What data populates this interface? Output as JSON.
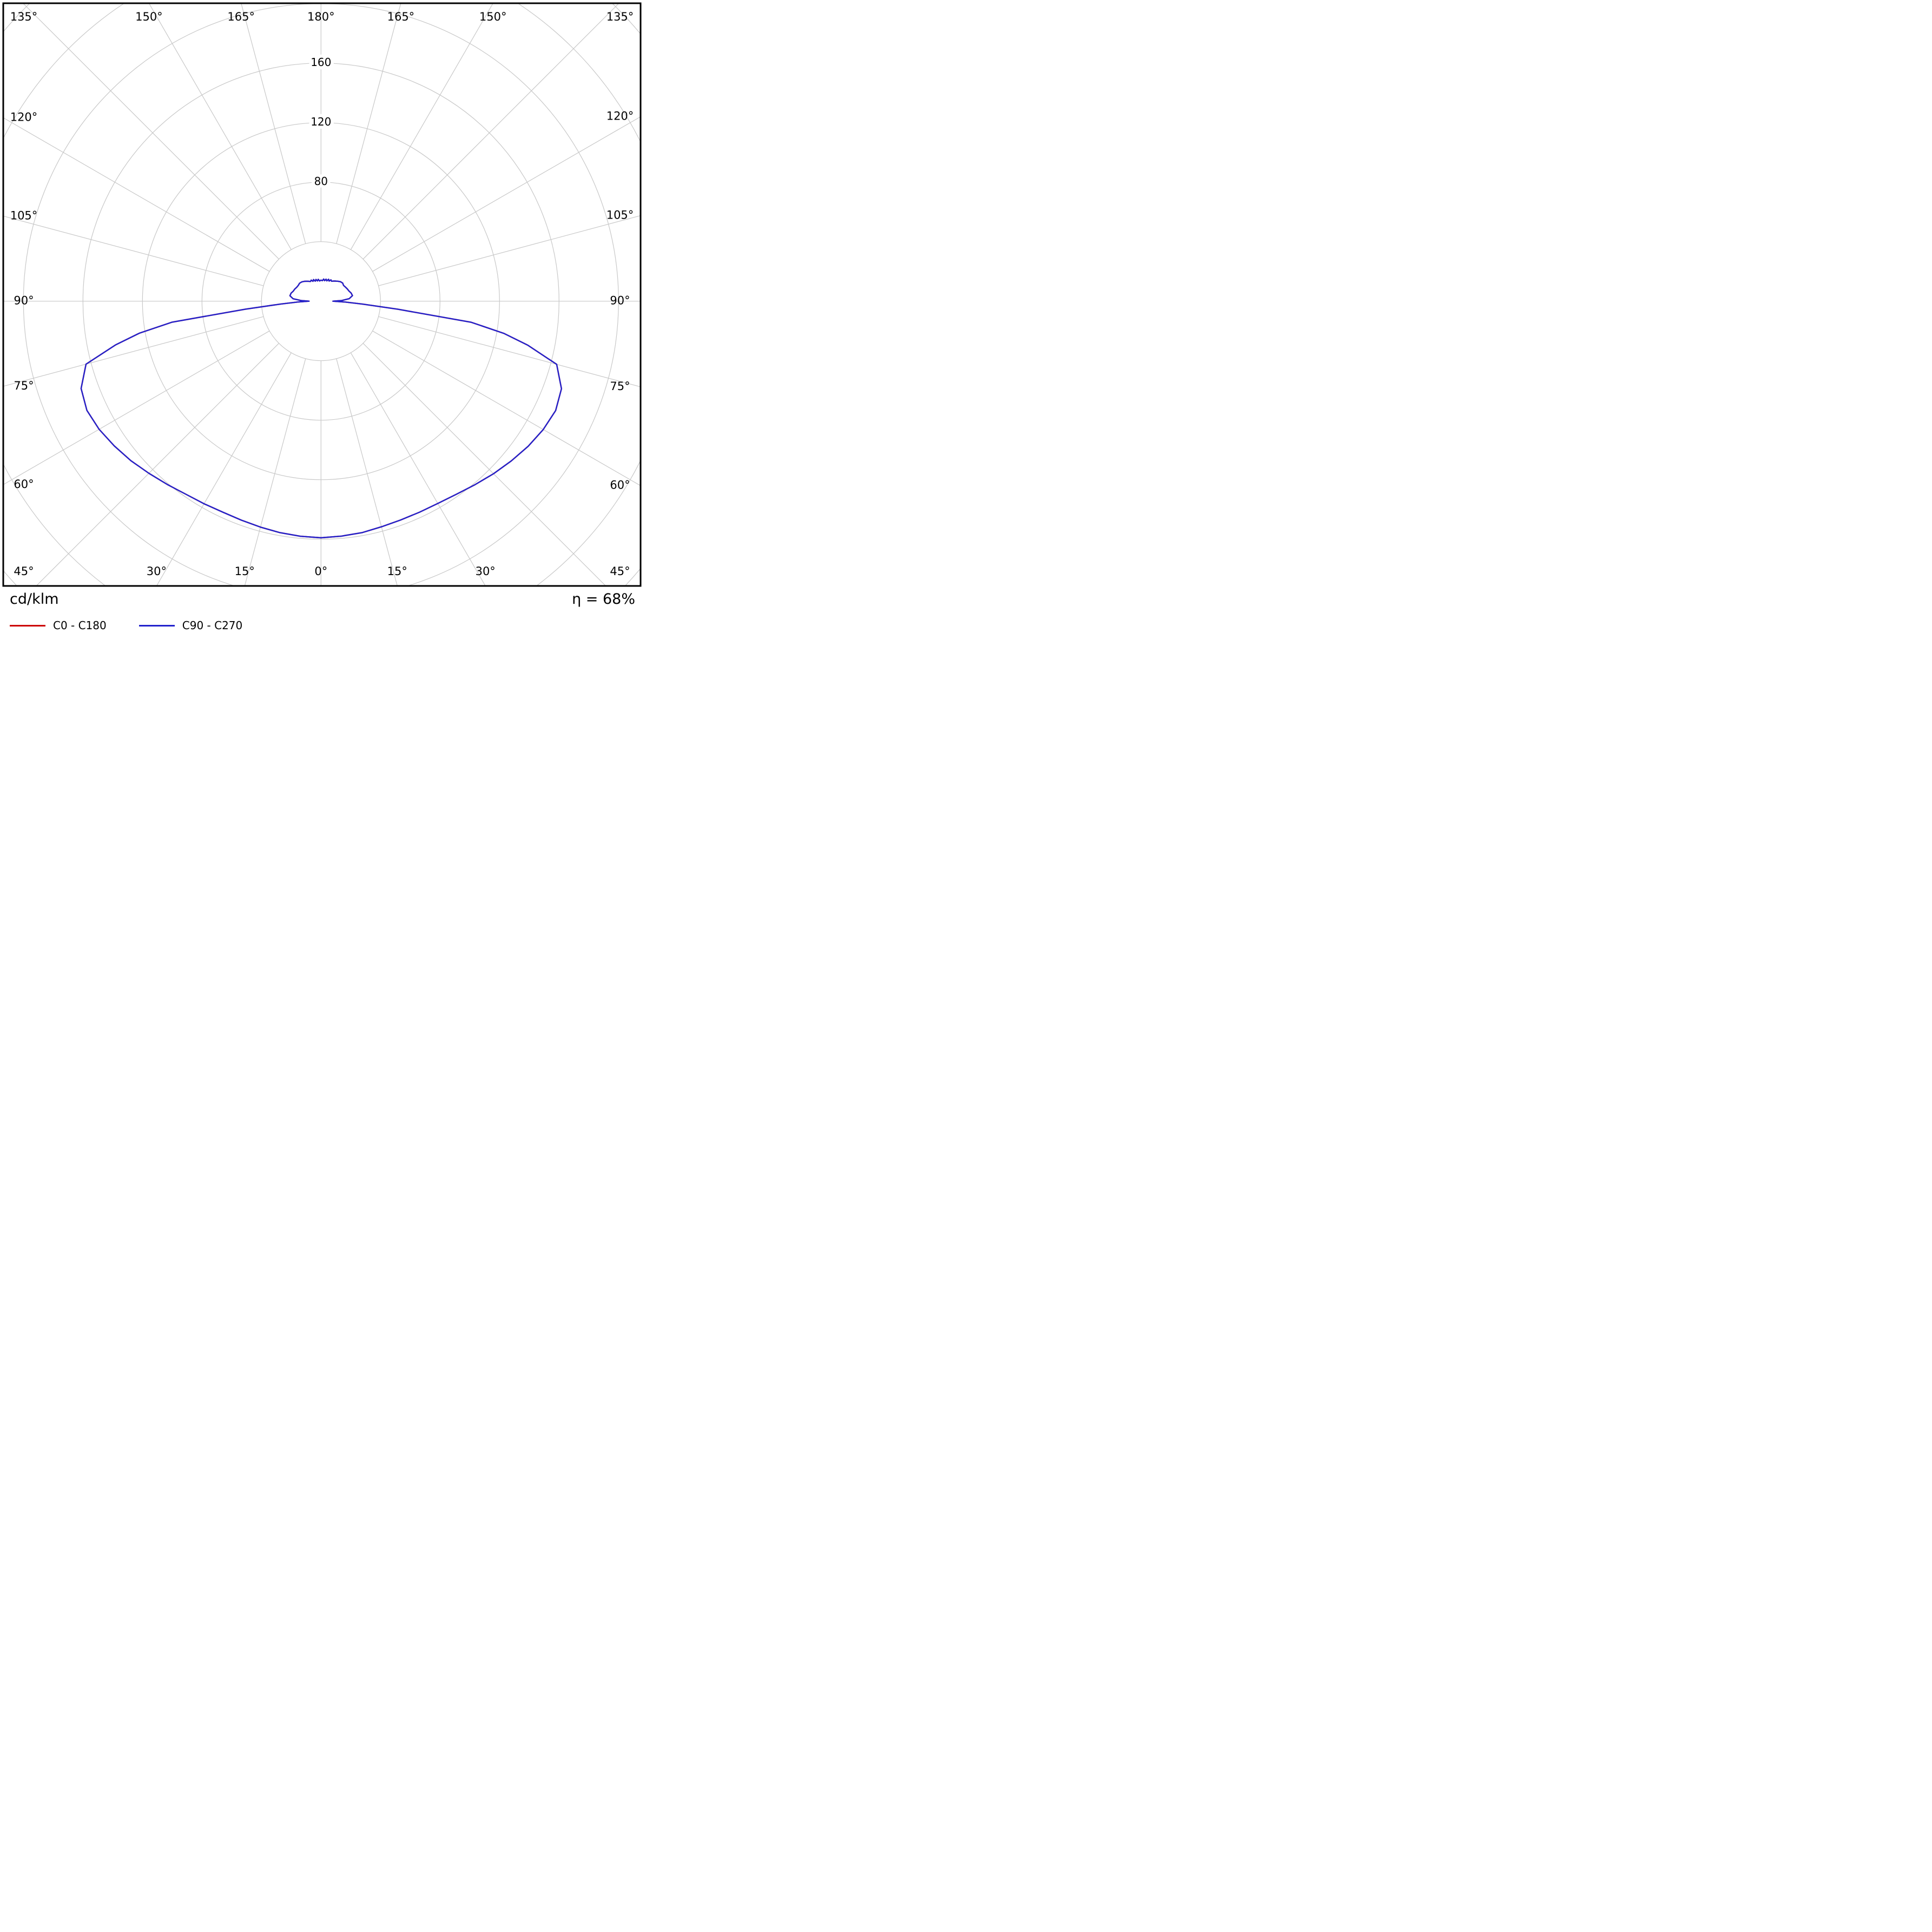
{
  "chart_data": {
    "type": "polar",
    "subtype": "photometric-intensity-distribution",
    "unit": "cd/klm",
    "efficiency": "η = 68%",
    "grid_color": "#c8c8c8",
    "frame_color": "#000000",
    "curve_colors": {
      "c0_c180": "#cc0000",
      "c90_c270": "#2222cc"
    },
    "radial_axis": {
      "ticks": [
        40,
        80,
        120,
        160,
        200,
        240,
        280
      ],
      "step": 40
    },
    "radial_tick_labels": [
      {
        "value": 80,
        "text": "80"
      },
      {
        "value": 120,
        "text": "120"
      },
      {
        "value": 160,
        "text": "160"
      }
    ],
    "angle_step_deg": 15,
    "angle_ticks": [
      {
        "value": 0,
        "text": "0°"
      },
      {
        "value": 15,
        "text": "15°"
      },
      {
        "value": 30,
        "text": "30°"
      },
      {
        "value": 45,
        "text": "45°"
      },
      {
        "value": 60,
        "text": "60°"
      },
      {
        "value": 75,
        "text": "75°"
      },
      {
        "value": 90,
        "text": "90°"
      },
      {
        "value": 105,
        "text": "105°"
      },
      {
        "value": 120,
        "text": "120°"
      },
      {
        "value": 135,
        "text": "135°"
      },
      {
        "value": 150,
        "text": "150°"
      },
      {
        "value": 165,
        "text": "165°"
      },
      {
        "value": 180,
        "text": "180°"
      }
    ],
    "gamma_deg": [
      0,
      5,
      10,
      15,
      20,
      25,
      30,
      35,
      40,
      45,
      50,
      55,
      60,
      65,
      70,
      75,
      78,
      80,
      82,
      84,
      86,
      88,
      90,
      92,
      95,
      100,
      105,
      110,
      115,
      120,
      125,
      130,
      135,
      140,
      145,
      148,
      152,
      155,
      158,
      161,
      164,
      167,
      170,
      173,
      176,
      180
    ],
    "series": [
      {
        "name": "C0 - C180",
        "color": "#cc0000",
        "right": [
          159,
          158.5,
          158,
          157,
          156.5,
          156.5,
          157,
          158.5,
          161,
          164,
          167,
          170,
          172.5,
          174,
          172,
          164,
          142,
          125,
          102,
          52,
          28,
          16,
          8,
          14,
          19,
          21.5,
          21,
          20,
          19.5,
          19,
          18.5,
          19,
          18.5,
          17.5,
          16.5,
          16,
          15.2,
          15.8,
          14.6,
          15.6,
          14.2,
          15.2,
          14,
          15,
          13.8,
          14.2
        ],
        "left": [
          159,
          158.6,
          158,
          157.2,
          156.6,
          156.4,
          157.2,
          158.4,
          160.8,
          163.6,
          166.8,
          169.6,
          172.2,
          173.6,
          171.6,
          163.5,
          141,
          124,
          101,
          51,
          27,
          15.5,
          8,
          13.5,
          18.8,
          21.2,
          20.8,
          19.8,
          19.4,
          18.8,
          18.6,
          18.8,
          18.3,
          17.4,
          16.4,
          15.8,
          15,
          15.6,
          14.4,
          15.4,
          14,
          15,
          13.8,
          14.8,
          13.6,
          14.2
        ]
      },
      {
        "name": "C90 - C270",
        "color": "#2222cc",
        "right": [
          159,
          158.5,
          158,
          157,
          156.5,
          156.5,
          157,
          158.5,
          161,
          164,
          167,
          170,
          172.5,
          174,
          172,
          164,
          142,
          125,
          102,
          52,
          28,
          16,
          8,
          14,
          19,
          21.5,
          21,
          20,
          19.5,
          19,
          18.5,
          19,
          18.5,
          17.5,
          16.5,
          16,
          15.2,
          15.8,
          14.6,
          15.6,
          14.2,
          15.2,
          14,
          15,
          13.8,
          14.2
        ],
        "left": [
          159,
          158.6,
          158,
          157.2,
          156.6,
          156.4,
          157.2,
          158.4,
          160.8,
          163.6,
          166.8,
          169.6,
          172.2,
          173.6,
          171.6,
          163.5,
          141,
          124,
          101,
          51,
          27,
          15.5,
          8,
          13.5,
          18.8,
          21.2,
          20.8,
          19.8,
          19.4,
          18.8,
          18.6,
          18.8,
          18.3,
          17.4,
          16.4,
          15.8,
          15,
          15.6,
          14.4,
          15.4,
          14,
          15,
          13.8,
          14.8,
          13.6,
          14.2
        ]
      }
    ],
    "legend": [
      {
        "label": "C0 - C180",
        "color": "#cc0000"
      },
      {
        "label": "C90 - C270",
        "color": "#2222cc"
      }
    ]
  }
}
